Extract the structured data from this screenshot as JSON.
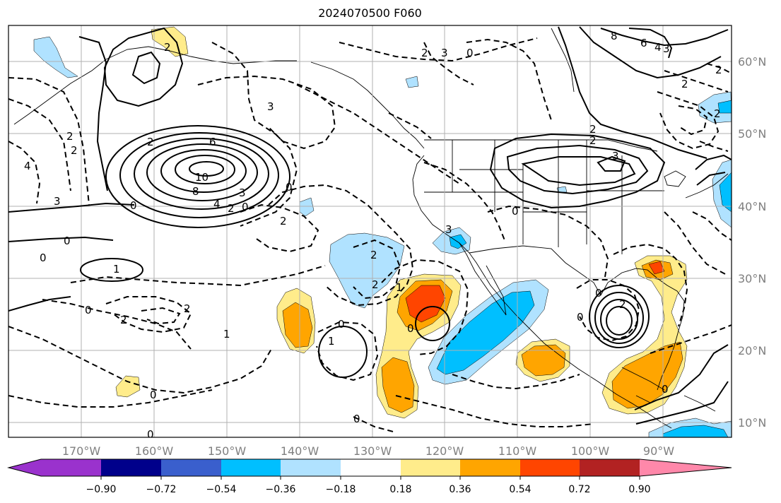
{
  "title": "2024070500 F060",
  "longitude_labels": [
    "170°W",
    "160°W",
    "150°W",
    "140°W",
    "130°W",
    "120°W",
    "110°W",
    "100°W",
    "90°W"
  ],
  "latitude_labels": [
    "60°N",
    "50°N",
    "40°N",
    "30°N",
    "20°N",
    "10°N"
  ],
  "colorbar": {
    "ticks": [
      "−0.90",
      "−0.72",
      "−0.54",
      "−0.36",
      "−0.18",
      "0.18",
      "0.36",
      "0.54",
      "0.72",
      "0.90"
    ],
    "colors": [
      "#9a32cd",
      "#00008b",
      "#3a5fcd",
      "#00bfff",
      "#b0e2ff",
      "#ffffff",
      "#ffec8b",
      "#ffa500",
      "#ff4500",
      "#b22222",
      "#ff88aa"
    ]
  },
  "fill_colors": {
    "neg_light": "#b0e2ff",
    "neg_mid": "#00bfff",
    "pos_light": "#ffec8b",
    "pos_mid": "#ffa500",
    "pos_strong": "#ff4500"
  },
  "contour_labels": [
    "2",
    "3",
    "2",
    "4",
    "2",
    "2",
    "0",
    "3",
    "6",
    "10",
    "8",
    "4",
    "2",
    "0",
    "3",
    "2",
    "0",
    "1",
    "0",
    "2",
    "2",
    "1",
    "0",
    "1",
    "0",
    "0",
    "3",
    "2",
    "2",
    "0",
    "0",
    "2",
    "3",
    "0",
    "8",
    "6",
    "4",
    "3",
    "2",
    "2",
    "2",
    "3",
    "0",
    "0",
    "2",
    "0",
    "2",
    "1",
    "2",
    "0",
    "0",
    "0"
  ]
}
